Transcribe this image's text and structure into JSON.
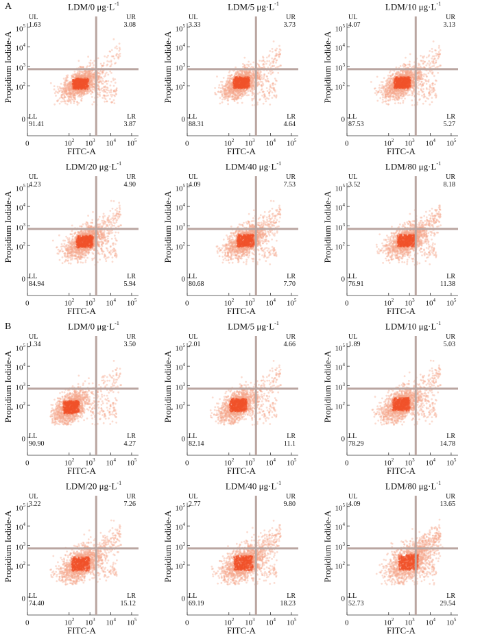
{
  "figure": {
    "section_labels": [
      "A",
      "B"
    ]
  },
  "chart_data": [
    {
      "type": "scatter",
      "section": "A",
      "title_prefix": "LDM/",
      "dose": "0",
      "unit": "μg·L",
      "exponent": "-1",
      "quadrants": {
        "UL": "1.63",
        "UR": "3.08",
        "LL": "91.41",
        "LR": "3.87"
      },
      "xlabel": "FITC-A",
      "ylabel": "Propidium Iodide-A",
      "xticks": [
        "0",
        "10",
        "10",
        "10",
        "10"
      ],
      "xtick_exp": [
        "",
        "2",
        "3",
        "4",
        "5"
      ],
      "yticks": [
        "0",
        "10",
        "10",
        "10",
        "10"
      ],
      "ytick_exp": [
        "",
        "2",
        "3",
        "4",
        "5"
      ],
      "center": [
        2.55,
        2.1
      ],
      "spread": [
        0.42,
        0.32
      ],
      "late_fraction": 0.04
    },
    {
      "type": "scatter",
      "section": "A",
      "title_prefix": "LDM/",
      "dose": "5",
      "unit": "μg·L",
      "exponent": "-1",
      "quadrants": {
        "UL": "3.33",
        "UR": "3.73",
        "LL": "88.31",
        "LR": "4.64"
      },
      "xlabel": "FITC-A",
      "ylabel": "Propidium Iodide-A",
      "xticks": [
        "0",
        "10",
        "10",
        "10",
        "10"
      ],
      "xtick_exp": [
        "",
        "2",
        "3",
        "4",
        "5"
      ],
      "yticks": [
        "0",
        "10",
        "10",
        "10",
        "10"
      ],
      "ytick_exp": [
        "",
        "2",
        "3",
        "4",
        "5"
      ],
      "center": [
        2.6,
        2.15
      ],
      "spread": [
        0.43,
        0.34
      ],
      "late_fraction": 0.05
    },
    {
      "type": "scatter",
      "section": "A",
      "title_prefix": "LDM/",
      "dose": "10",
      "unit": "μg·L",
      "exponent": "-1",
      "quadrants": {
        "UL": "4.07",
        "UR": "3.13",
        "LL": "87.53",
        "LR": "5.27"
      },
      "xlabel": "FITC-A",
      "ylabel": "Propidium Iodide-A",
      "xticks": [
        "0",
        "10",
        "10",
        "10",
        "10"
      ],
      "xtick_exp": [
        "",
        "2",
        "3",
        "4",
        "5"
      ],
      "yticks": [
        "0",
        "10",
        "10",
        "10",
        "10"
      ],
      "ytick_exp": [
        "",
        "2",
        "3",
        "4",
        "5"
      ],
      "center": [
        2.65,
        2.15
      ],
      "spread": [
        0.44,
        0.34
      ],
      "late_fraction": 0.05
    },
    {
      "type": "scatter",
      "section": "A",
      "title_prefix": "LDM/",
      "dose": "20",
      "unit": "μg·L",
      "exponent": "-1",
      "quadrants": {
        "UL": "4.23",
        "UR": "4.90",
        "LL": "84.94",
        "LR": "5.94"
      },
      "xlabel": "FITC-A",
      "ylabel": "Propidium Iodide-A",
      "xticks": [
        "0",
        "10",
        "10",
        "10",
        "10"
      ],
      "xtick_exp": [
        "",
        "2",
        "3",
        "4",
        "5"
      ],
      "yticks": [
        "0",
        "10",
        "10",
        "10",
        "10"
      ],
      "ytick_exp": [
        "",
        "2",
        "3",
        "4",
        "5"
      ],
      "center": [
        2.75,
        2.2
      ],
      "spread": [
        0.45,
        0.35
      ],
      "late_fraction": 0.06
    },
    {
      "type": "scatter",
      "section": "A",
      "title_prefix": "LDM/",
      "dose": "40",
      "unit": "μg·L",
      "exponent": "-1",
      "quadrants": {
        "UL": "4.09",
        "UR": "7.53",
        "LL": "80.68",
        "LR": "7.70"
      },
      "xlabel": "FITC-A",
      "ylabel": "Propidium Iodide-A",
      "xticks": [
        "0",
        "10",
        "10",
        "10",
        "10"
      ],
      "xtick_exp": [
        "",
        "2",
        "3",
        "4",
        "5"
      ],
      "yticks": [
        "0",
        "10",
        "10",
        "10",
        "10"
      ],
      "ytick_exp": [
        "",
        "2",
        "3",
        "4",
        "5"
      ],
      "center": [
        2.8,
        2.25
      ],
      "spread": [
        0.46,
        0.36
      ],
      "late_fraction": 0.08
    },
    {
      "type": "scatter",
      "section": "A",
      "title_prefix": "LDM/",
      "dose": "80",
      "unit": "μg·L",
      "exponent": "-1",
      "quadrants": {
        "UL": "3.52",
        "UR": "8.18",
        "LL": "76.91",
        "LR": "11.38"
      },
      "xlabel": "FITC-A",
      "ylabel": "Propidium Iodide-A",
      "xticks": [
        "0",
        "10",
        "10",
        "10",
        "10"
      ],
      "xtick_exp": [
        "",
        "2",
        "3",
        "4",
        "5"
      ],
      "yticks": [
        "0",
        "10",
        "10",
        "10",
        "10"
      ],
      "ytick_exp": [
        "",
        "2",
        "3",
        "4",
        "5"
      ],
      "center": [
        2.85,
        2.25
      ],
      "spread": [
        0.47,
        0.36
      ],
      "late_fraction": 0.09
    },
    {
      "type": "scatter",
      "section": "B",
      "title_prefix": "LDM/",
      "dose": "0",
      "unit": "μg·L",
      "exponent": "-1",
      "quadrants": {
        "UL": "1.34",
        "UR": "3.50",
        "LL": "90.90",
        "LR": "4.27"
      },
      "xlabel": "FITC-A",
      "ylabel": "Propidium Iodide-A",
      "xticks": [
        "0",
        "10",
        "10",
        "10",
        "10"
      ],
      "xtick_exp": [
        "",
        "2",
        "3",
        "4",
        "5"
      ],
      "yticks": [
        "0",
        "10",
        "10",
        "10",
        "10"
      ],
      "ytick_exp": [
        "",
        "2",
        "3",
        "4",
        "5"
      ],
      "center": [
        2.1,
        1.9
      ],
      "spread": [
        0.42,
        0.38
      ],
      "late_fraction": 0.04
    },
    {
      "type": "scatter",
      "section": "B",
      "title_prefix": "LDM/",
      "dose": "5",
      "unit": "μg·L",
      "exponent": "-1",
      "quadrants": {
        "UL": "2.01",
        "UR": "4.66",
        "LL": "82.14",
        "LR": "11.1"
      },
      "xlabel": "FITC-A",
      "ylabel": "Propidium Iodide-A",
      "xticks": [
        "0",
        "10",
        "10",
        "10",
        "10"
      ],
      "xtick_exp": [
        "",
        "2",
        "3",
        "4",
        "5"
      ],
      "yticks": [
        "0",
        "10",
        "10",
        "10",
        "10"
      ],
      "ytick_exp": [
        "",
        "2",
        "3",
        "4",
        "5"
      ],
      "center": [
        2.45,
        2.0
      ],
      "spread": [
        0.45,
        0.38
      ],
      "late_fraction": 0.05
    },
    {
      "type": "scatter",
      "section": "B",
      "title_prefix": "LDM/",
      "dose": "10",
      "unit": "μg·L",
      "exponent": "-1",
      "quadrants": {
        "UL": "1.89",
        "UR": "5.03",
        "LL": "78.29",
        "LR": "14.78"
      },
      "xlabel": "FITC-A",
      "ylabel": "Propidium Iodide-A",
      "xticks": [
        "0",
        "10",
        "10",
        "10",
        "10"
      ],
      "xtick_exp": [
        "",
        "2",
        "3",
        "4",
        "5"
      ],
      "yticks": [
        "0",
        "10",
        "10",
        "10",
        "10"
      ],
      "ytick_exp": [
        "",
        "2",
        "3",
        "4",
        "5"
      ],
      "center": [
        2.6,
        2.05
      ],
      "spread": [
        0.46,
        0.38
      ],
      "late_fraction": 0.06
    },
    {
      "type": "scatter",
      "section": "B",
      "title_prefix": "LDM/",
      "dose": "20",
      "unit": "μg·L",
      "exponent": "-1",
      "quadrants": {
        "UL": "3.22",
        "UR": "7.26",
        "LL": "74.40",
        "LR": "15.12"
      },
      "xlabel": "FITC-A",
      "ylabel": "Propidium Iodide-A",
      "xticks": [
        "0",
        "10",
        "10",
        "10",
        "10"
      ],
      "xtick_exp": [
        "",
        "2",
        "3",
        "4",
        "5"
      ],
      "yticks": [
        "0",
        "10",
        "10",
        "10",
        "10"
      ],
      "ytick_exp": [
        "",
        "2",
        "3",
        "4",
        "5"
      ],
      "center": [
        2.55,
        2.05
      ],
      "spread": [
        0.48,
        0.4
      ],
      "late_fraction": 0.08
    },
    {
      "type": "scatter",
      "section": "B",
      "title_prefix": "LDM/",
      "dose": "40",
      "unit": "μg·L",
      "exponent": "-1",
      "quadrants": {
        "UL": "2.77",
        "UR": "9.80",
        "LL": "69.19",
        "LR": "18.23"
      },
      "xlabel": "FITC-A",
      "ylabel": "Propidium Iodide-A",
      "xticks": [
        "0",
        "10",
        "10",
        "10",
        "10"
      ],
      "xtick_exp": [
        "",
        "2",
        "3",
        "4",
        "5"
      ],
      "yticks": [
        "0",
        "10",
        "10",
        "10",
        "10"
      ],
      "ytick_exp": [
        "",
        "2",
        "3",
        "4",
        "5"
      ],
      "center": [
        2.7,
        2.1
      ],
      "spread": [
        0.5,
        0.42
      ],
      "late_fraction": 0.1
    },
    {
      "type": "scatter",
      "section": "B",
      "title_prefix": "LDM/",
      "dose": "80",
      "unit": "μg·L",
      "exponent": "-1",
      "quadrants": {
        "UL": "4.09",
        "UR": "13.65",
        "LL": "52.73",
        "LR": "29.54"
      },
      "xlabel": "FITC-A",
      "ylabel": "Propidium Iodide-A",
      "xticks": [
        "0",
        "10",
        "10",
        "10",
        "10"
      ],
      "xtick_exp": [
        "",
        "2",
        "3",
        "4",
        "5"
      ],
      "yticks": [
        "0",
        "10",
        "10",
        "10",
        "10"
      ],
      "ytick_exp": [
        "",
        "2",
        "3",
        "4",
        "5"
      ],
      "center": [
        2.95,
        2.15
      ],
      "spread": [
        0.52,
        0.45
      ],
      "late_fraction": 0.14
    }
  ],
  "style": {
    "dot_color": "#f0522a",
    "dot_color_light": "#f4a48a",
    "gate_color": "#b9a5a0",
    "axis_color": "#333333"
  }
}
